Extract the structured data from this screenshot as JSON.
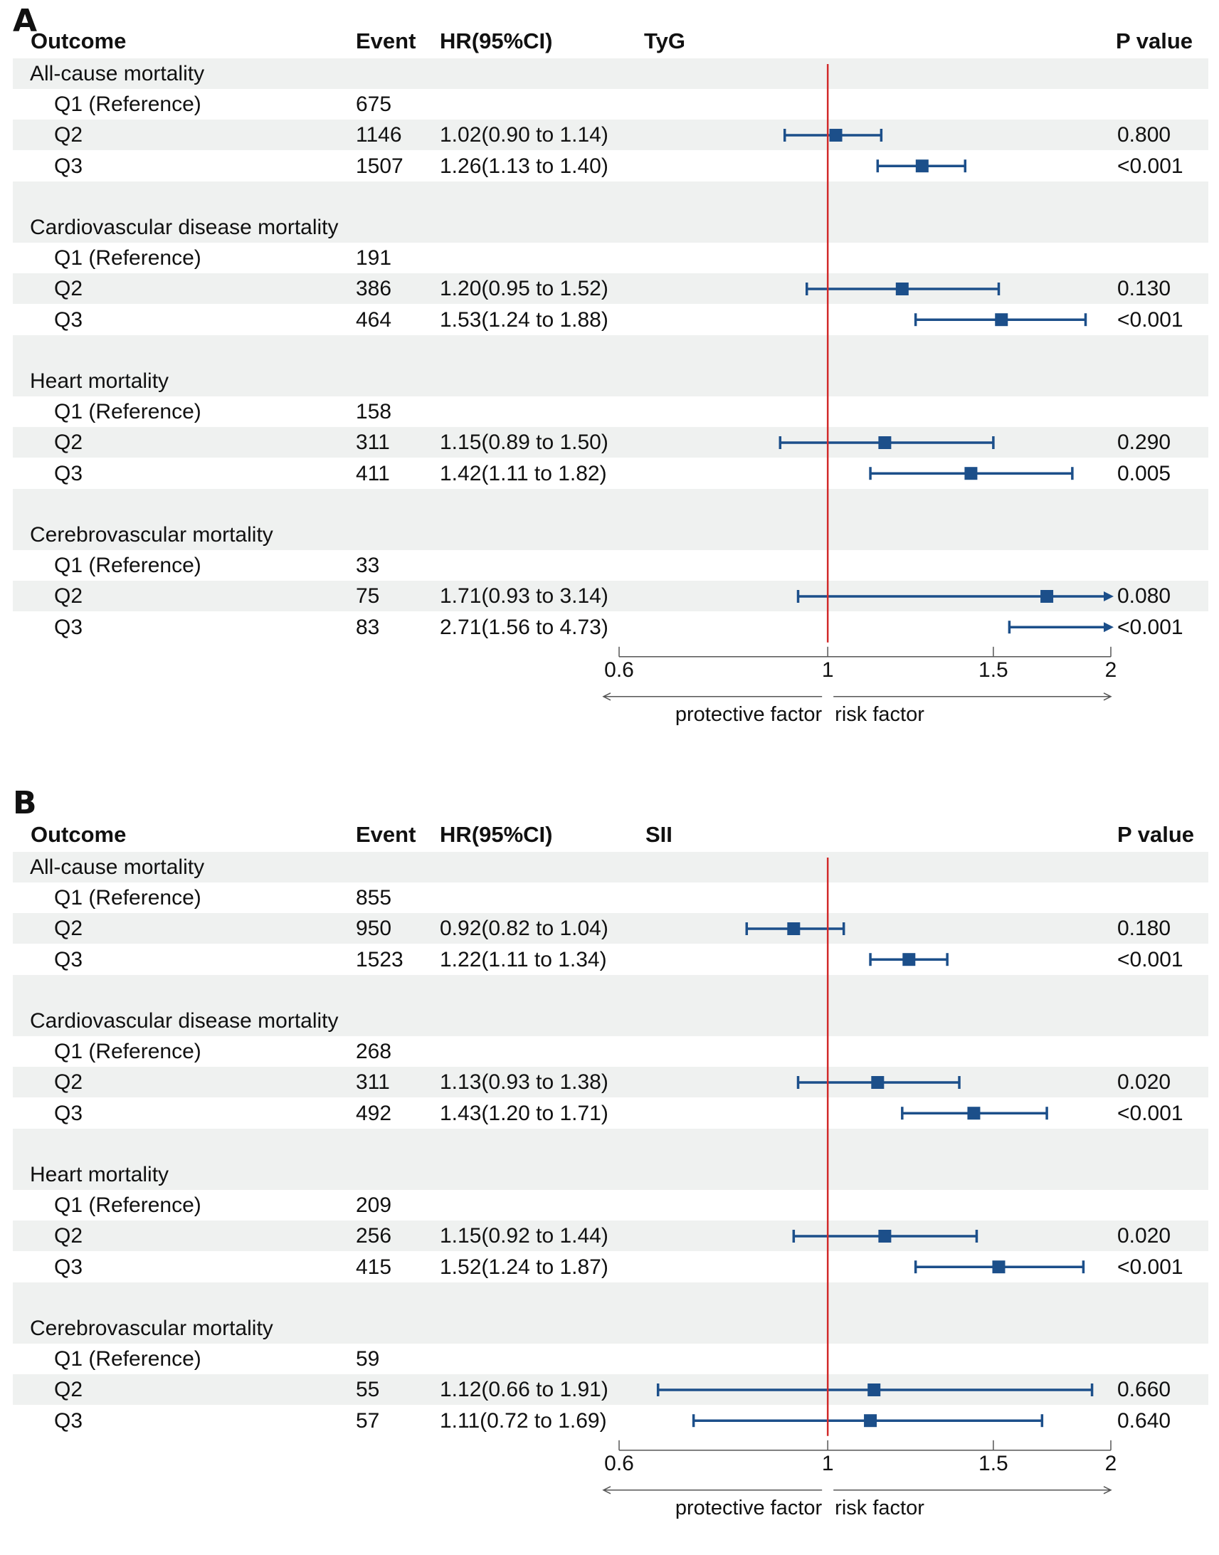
{
  "chart_data": [
    {
      "type": "forest",
      "panel": "A",
      "headers": {
        "outcome": "Outcome",
        "event": "Event",
        "hr": "HR(95%CI)",
        "title": "TyG",
        "p": "P value"
      },
      "xticks": [
        0.6,
        1,
        1.5,
        2
      ],
      "xtick_labels": [
        "0.6",
        "1",
        "1.5",
        "2"
      ],
      "xlim": [
        0.6,
        2
      ],
      "reference_line": 1,
      "left_label": "protective factor",
      "right_label": "risk factor",
      "groups": [
        {
          "title": "All-cause mortality",
          "rows": [
            {
              "label": "Q1 (Reference)",
              "event": "675",
              "hr_text": "",
              "p": "",
              "hr": null,
              "lo": null,
              "hi": null
            },
            {
              "label": "Q2",
              "event": "1146",
              "hr_text": "1.02(0.90 to 1.14)",
              "p": "0.800",
              "hr": 1.02,
              "lo": 0.9,
              "hi": 1.14
            },
            {
              "label": "Q3",
              "event": "1507",
              "hr_text": "1.26(1.13 to 1.40)",
              "p": "<0.001",
              "hr": 1.26,
              "lo": 1.13,
              "hi": 1.4
            }
          ]
        },
        {
          "title": "Cardiovascular  disease mortality",
          "rows": [
            {
              "label": "Q1 (Reference)",
              "event": "191",
              "hr_text": "",
              "p": "",
              "hr": null,
              "lo": null,
              "hi": null
            },
            {
              "label": "Q2",
              "event": "386",
              "hr_text": "1.20(0.95 to 1.52)",
              "p": "0.130",
              "hr": 1.2,
              "lo": 0.95,
              "hi": 1.52
            },
            {
              "label": "Q3",
              "event": "464",
              "hr_text": "1.53(1.24 to 1.88)",
              "p": "<0.001",
              "hr": 1.53,
              "lo": 1.24,
              "hi": 1.88
            }
          ]
        },
        {
          "title": "Heart mortality",
          "rows": [
            {
              "label": "Q1 (Reference)",
              "event": "158",
              "hr_text": "",
              "p": "",
              "hr": null,
              "lo": null,
              "hi": null
            },
            {
              "label": "Q2",
              "event": "311",
              "hr_text": "1.15(0.89 to 1.50)",
              "p": "0.290",
              "hr": 1.15,
              "lo": 0.89,
              "hi": 1.5
            },
            {
              "label": "Q3",
              "event": "411",
              "hr_text": "1.42(1.11 to 1.82)",
              "p": "0.005",
              "hr": 1.42,
              "lo": 1.11,
              "hi": 1.82
            }
          ]
        },
        {
          "title": "Cerebrovascular mortality",
          "rows": [
            {
              "label": "Q1 (Reference)",
              "event": "33",
              "hr_text": "",
              "p": "",
              "hr": null,
              "lo": null,
              "hi": null
            },
            {
              "label": "Q2",
              "event": "75",
              "hr_text": "1.71(0.93 to 3.14)",
              "p": "0.080",
              "hr": 1.71,
              "lo": 0.93,
              "hi": 3.14
            },
            {
              "label": "Q3",
              "event": "83",
              "hr_text": "2.71(1.56 to 4.73)",
              "p": "<0.001",
              "hr": 2.71,
              "lo": 1.56,
              "hi": 4.73
            }
          ]
        }
      ]
    },
    {
      "type": "forest",
      "panel": "B",
      "headers": {
        "outcome": "Outcome",
        "event": "Event",
        "hr": "HR(95%CI)",
        "title": "SII",
        "p": "P value"
      },
      "xticks": [
        0.6,
        1,
        1.5,
        2
      ],
      "xtick_labels": [
        "0.6",
        "1",
        "1.5",
        "2"
      ],
      "xlim": [
        0.6,
        2
      ],
      "reference_line": 1,
      "left_label": "protective factor",
      "right_label": "risk factor",
      "groups": [
        {
          "title": "All-cause mortality",
          "rows": [
            {
              "label": "Q1 (Reference)",
              "event": "855",
              "hr_text": "",
              "p": "",
              "hr": null,
              "lo": null,
              "hi": null
            },
            {
              "label": "Q2",
              "event": "950",
              "hr_text": "0.92(0.82 to 1.04)",
              "p": "0.180",
              "hr": 0.92,
              "lo": 0.82,
              "hi": 1.04
            },
            {
              "label": "Q3",
              "event": "1523",
              "hr_text": "1.22(1.11 to 1.34)",
              "p": "<0.001",
              "hr": 1.22,
              "lo": 1.11,
              "hi": 1.34
            }
          ]
        },
        {
          "title": "Cardiovascular  disease mortality",
          "rows": [
            {
              "label": "Q1 (Reference)",
              "event": "268",
              "hr_text": "",
              "p": "",
              "hr": null,
              "lo": null,
              "hi": null
            },
            {
              "label": "Q2",
              "event": "311",
              "hr_text": "1.13(0.93 to 1.38)",
              "p": "0.020",
              "hr": 1.13,
              "lo": 0.93,
              "hi": 1.38
            },
            {
              "label": "Q3",
              "event": "492",
              "hr_text": "1.43(1.20 to 1.71)",
              "p": "<0.001",
              "hr": 1.43,
              "lo": 1.2,
              "hi": 1.71
            }
          ]
        },
        {
          "title": "Heart mortality",
          "rows": [
            {
              "label": "Q1 (Reference)",
              "event": "209",
              "hr_text": "",
              "p": "",
              "hr": null,
              "lo": null,
              "hi": null
            },
            {
              "label": "Q2",
              "event": "256",
              "hr_text": "1.15(0.92 to 1.44)",
              "p": "0.020",
              "hr": 1.15,
              "lo": 0.92,
              "hi": 1.44
            },
            {
              "label": "Q3",
              "event": "415",
              "hr_text": "1.52(1.24 to 1.87)",
              "p": "<0.001",
              "hr": 1.52,
              "lo": 1.24,
              "hi": 1.87
            }
          ]
        },
        {
          "title": "Cerebrovascular mortality",
          "rows": [
            {
              "label": "Q1 (Reference)",
              "event": "59",
              "hr_text": "",
              "p": "",
              "hr": null,
              "lo": null,
              "hi": null
            },
            {
              "label": "Q2",
              "event": "55",
              "hr_text": "1.12(0.66 to 1.91)",
              "p": "0.660",
              "hr": 1.12,
              "lo": 0.66,
              "hi": 1.91
            },
            {
              "label": "Q3",
              "event": "57",
              "hr_text": "1.11(0.72 to 1.69)",
              "p": "0.640",
              "hr": 1.11,
              "lo": 0.72,
              "hi": 1.69
            }
          ]
        }
      ]
    }
  ]
}
